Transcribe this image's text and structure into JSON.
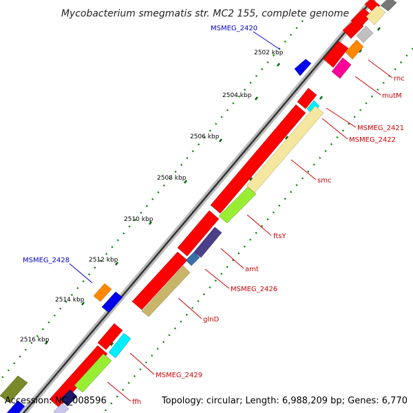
{
  "title": "Mycobacterium smegmatis str. MC2 155, complete genome",
  "footer": {
    "accession": "Accession: NC_008596",
    "topology": "Topology: circular; Length: 6,988,209 bp; Genes: 6,770"
  },
  "colors": {
    "forward_label": "#0000cc",
    "reverse_label": "#cc0000",
    "backbone": "#333333",
    "backbone_shadow": "#bbbbbb",
    "tick": "#006600",
    "dot": "#008800"
  },
  "ticks": [
    {
      "label": "2502 kbp"
    },
    {
      "label": "2504 kbp"
    },
    {
      "label": "2506 kbp"
    },
    {
      "label": "2508 kbp"
    },
    {
      "label": "2510 kbp"
    },
    {
      "label": "2512 kbp"
    },
    {
      "label": "2514 kbp"
    },
    {
      "label": "2516 kbp"
    }
  ],
  "gene_labels": [
    {
      "text": "MSMEG_2420",
      "strand": "forward"
    },
    {
      "text": "MSMEG_2428",
      "strand": "forward"
    },
    {
      "text": "rnc",
      "strand": "reverse"
    },
    {
      "text": "mutM",
      "strand": "reverse"
    },
    {
      "text": "MSMEG_2421",
      "strand": "reverse"
    },
    {
      "text": "MSMEG_2422",
      "strand": "reverse"
    },
    {
      "text": "smc",
      "strand": "reverse"
    },
    {
      "text": "ftsY",
      "strand": "reverse"
    },
    {
      "text": "amt",
      "strand": "reverse"
    },
    {
      "text": "MSMEG_2426",
      "strand": "reverse"
    },
    {
      "text": "glnD",
      "strand": "reverse"
    },
    {
      "text": "MSMEG_2429",
      "strand": "reverse"
    },
    {
      "text": "ffh",
      "strand": "reverse"
    }
  ]
}
